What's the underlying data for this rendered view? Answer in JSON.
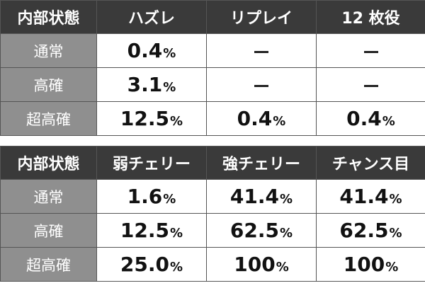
{
  "table1": {
    "headers": [
      "内部状態",
      "ハズレ",
      "リプレイ",
      "12 枚役"
    ],
    "rows": [
      {
        "state": "通常",
        "values": [
          {
            "num": "0.4",
            "pct": "%"
          },
          {
            "dash": true
          },
          {
            "dash": true
          }
        ]
      },
      {
        "state": "高確",
        "values": [
          {
            "num": "3.1",
            "pct": "%"
          },
          {
            "dash": true
          },
          {
            "dash": true
          }
        ]
      },
      {
        "state": "超高確",
        "values": [
          {
            "num": "12.5",
            "pct": "%"
          },
          {
            "num": "0.4",
            "pct": "%"
          },
          {
            "num": "0.4",
            "pct": "%"
          }
        ]
      }
    ]
  },
  "table2": {
    "headers": [
      "内部状態",
      "弱チェリー",
      "強チェリー",
      "チャンス目"
    ],
    "rows": [
      {
        "state": "通常",
        "values": [
          {
            "num": "1.6",
            "pct": "%"
          },
          {
            "num": "41.4",
            "pct": "%"
          },
          {
            "num": "41.4",
            "pct": "%"
          }
        ]
      },
      {
        "state": "高確",
        "values": [
          {
            "num": "12.5",
            "pct": "%"
          },
          {
            "num": "62.5",
            "pct": "%"
          },
          {
            "num": "62.5",
            "pct": "%"
          }
        ]
      },
      {
        "state": "超高確",
        "values": [
          {
            "num": "25.0",
            "pct": "%"
          },
          {
            "num": "100",
            "pct": "%"
          },
          {
            "num": "100",
            "pct": "%"
          }
        ]
      }
    ]
  },
  "colors": {
    "header_bg": "#3a3a3a",
    "state_bg": "#8f8f8f",
    "value_bg": "#ffffff",
    "border": "#555555"
  }
}
